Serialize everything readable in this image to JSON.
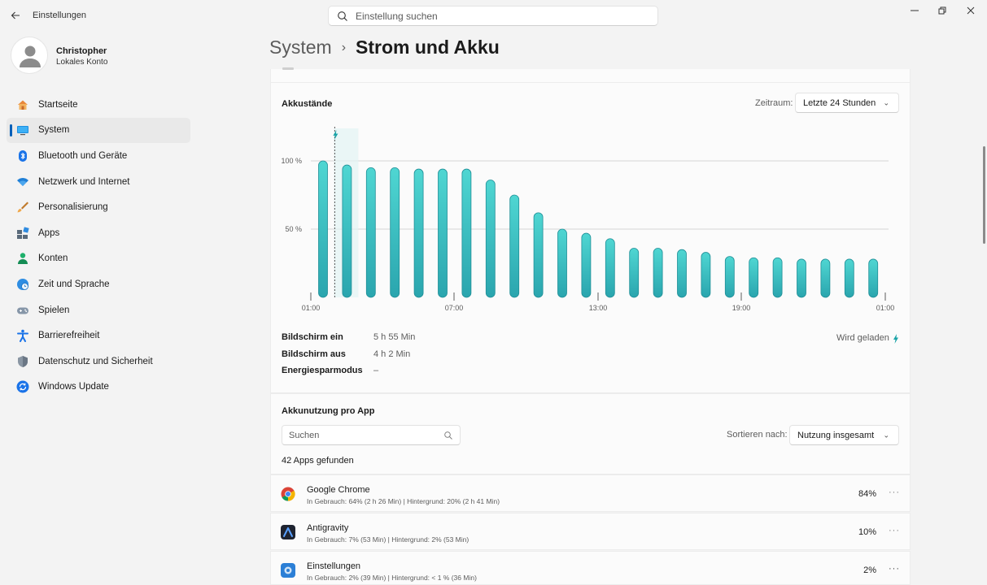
{
  "window": {
    "title": "Einstellungen",
    "search_placeholder": "Einstellung suchen"
  },
  "account": {
    "name": "Christopher",
    "type": "Lokales Konto"
  },
  "nav": [
    {
      "label": "Startseite",
      "icon": "home-icon"
    },
    {
      "label": "System",
      "icon": "system-icon",
      "active": true
    },
    {
      "label": "Bluetooth und Geräte",
      "icon": "bluetooth-icon"
    },
    {
      "label": "Netzwerk und Internet",
      "icon": "wifi-icon"
    },
    {
      "label": "Personalisierung",
      "icon": "brush-icon"
    },
    {
      "label": "Apps",
      "icon": "apps-icon"
    },
    {
      "label": "Konten",
      "icon": "person-icon"
    },
    {
      "label": "Zeit und Sprache",
      "icon": "globe-clock-icon"
    },
    {
      "label": "Spielen",
      "icon": "gamepad-icon"
    },
    {
      "label": "Barrierefreiheit",
      "icon": "accessibility-icon"
    },
    {
      "label": "Datenschutz und Sicherheit",
      "icon": "shield-icon"
    },
    {
      "label": "Windows Update",
      "icon": "update-icon"
    }
  ],
  "header": {
    "parent": "System",
    "separator": "›",
    "current": "Strom und Akku"
  },
  "battery": {
    "title": "Akkustände",
    "range_label": "Zeitraum:",
    "range_value": "Letzte 24 Stunden",
    "charging_status": "Wird geladen"
  },
  "chart_data": {
    "type": "bar",
    "categories": [
      "01:00",
      "02:00",
      "03:00",
      "04:00",
      "05:00",
      "06:00",
      "07:00",
      "08:00",
      "09:00",
      "10:00",
      "11:00",
      "12:00",
      "13:00",
      "14:00",
      "15:00",
      "16:00",
      "17:00",
      "18:00",
      "19:00",
      "20:00",
      "21:00",
      "22:00",
      "23:00",
      "00:00"
    ],
    "values": [
      100,
      97,
      95,
      95,
      94,
      94,
      94,
      86,
      75,
      62,
      50,
      47,
      43,
      36,
      36,
      35,
      33,
      30,
      29,
      29,
      28,
      28,
      28,
      28
    ],
    "y_ticks": [
      "100 %",
      "50 %"
    ],
    "x_ticks": [
      "01:00",
      "07:00",
      "13:00",
      "19:00",
      "01:00"
    ],
    "ylim": [
      0,
      100
    ],
    "charging_marker": "charging-bolt-icon"
  },
  "stats": [
    {
      "label": "Bildschirm ein",
      "value": "5 h 55 Min"
    },
    {
      "label": "Bildschirm aus",
      "value": "4 h 2 Min"
    },
    {
      "label": "Energiesparmodus",
      "value": "–"
    }
  ],
  "app_usage": {
    "title": "Akkunutzung pro App",
    "search_placeholder": "Suchen",
    "sort_label": "Sortieren nach:",
    "sort_value": "Nutzung insgesamt",
    "found": "42 Apps gefunden",
    "apps": [
      {
        "name": "Google Chrome",
        "detail": "In Gebrauch: 64% (2 h 26 Min) | Hintergrund: 20% (2 h 41 Min)",
        "percent": "84%",
        "icon": "chrome-icon",
        "more": "···"
      },
      {
        "name": "Antigravity",
        "detail": "In Gebrauch: 7% (53 Min) | Hintergrund: 2% (53 Min)",
        "percent": "10%",
        "icon": "antigravity-icon",
        "more": "···"
      },
      {
        "name": "Einstellungen",
        "detail": "In Gebrauch: 2% (39 Min) | Hintergrund: < 1 % (36 Min)",
        "percent": "2%",
        "icon": "settings-icon",
        "more": "···"
      }
    ]
  },
  "colors": {
    "accent": "#005fb8",
    "bar_top": "#4fd6d2",
    "bar_bottom": "#2ca6ad",
    "charging": "#1aa3a7"
  }
}
